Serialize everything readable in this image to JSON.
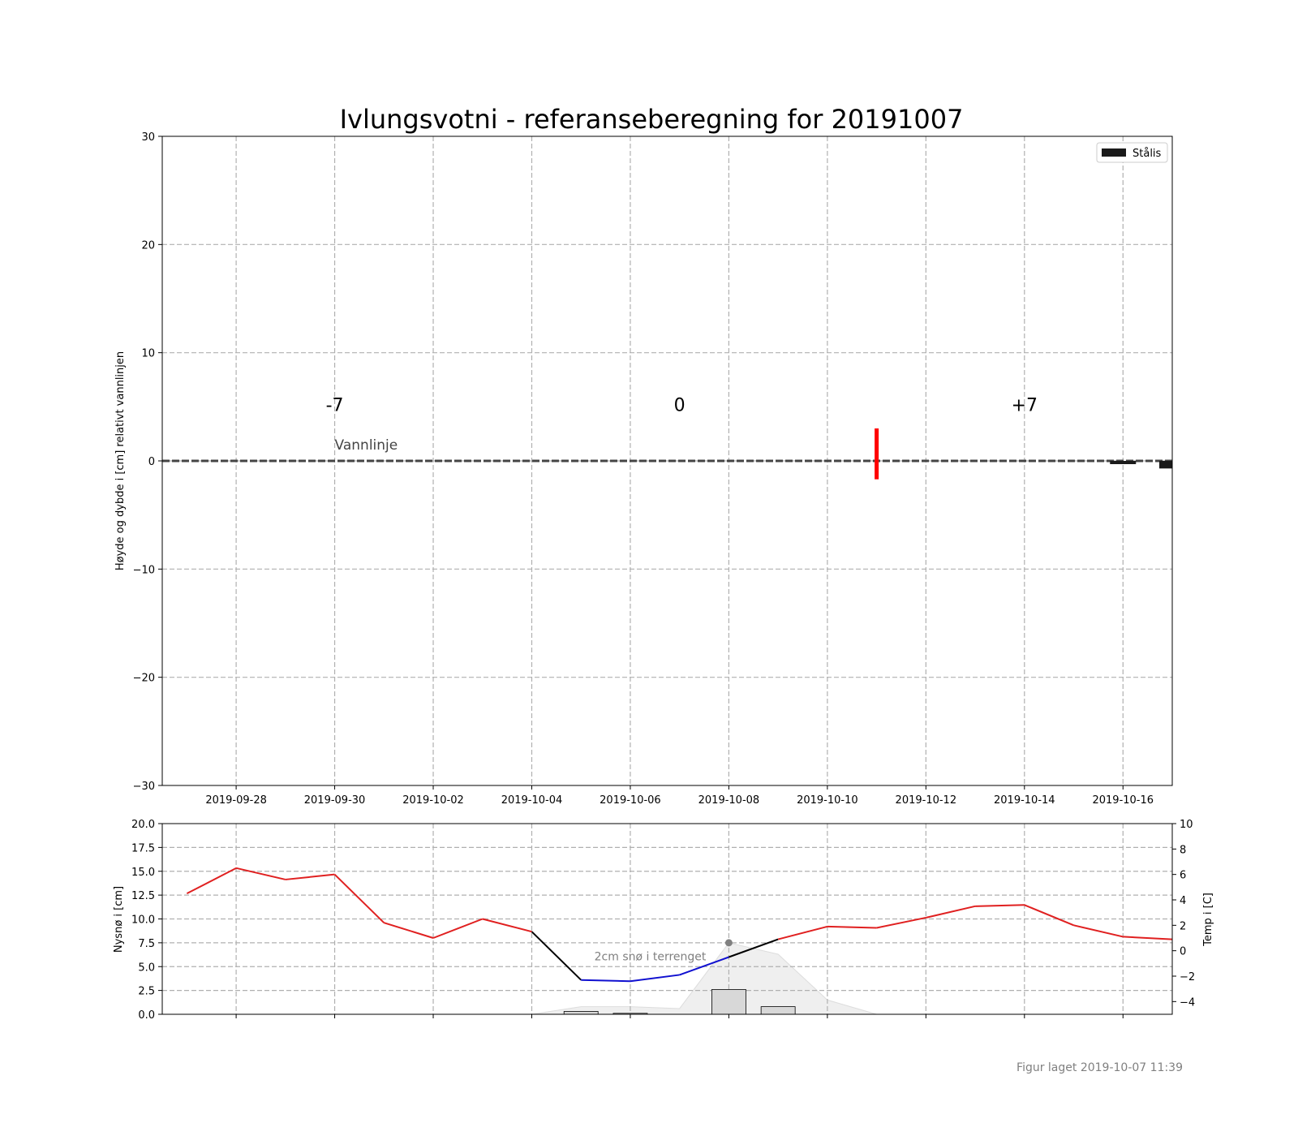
{
  "title": "Ivlungsvotni - referanseberegning for 20191007",
  "footer": "Figur laget 2019-10-07 11:39",
  "colors": {
    "temp_warm": "#e02020",
    "temp_cold": "#1010d0",
    "temp_transition": "#000000",
    "ice_marker": "#ff0000",
    "stalis": "#1a1a1a",
    "snow_bar": "#d8d8d8",
    "snow_terrain": "#efefef",
    "waterline": "#444444",
    "annotation_grey": "#808080"
  },
  "chart_data": [
    {
      "type": "bar",
      "name": "ice-profile",
      "ylabel": "Høyde og dybde i [cm] relativt vannlinjen",
      "ylim": [
        -30,
        30
      ],
      "xlim": [
        "2019-09-27",
        "2019-10-17"
      ],
      "x_tick_labels": [
        "2019-09-28",
        "2019-09-30",
        "2019-10-02",
        "2019-10-04",
        "2019-10-06",
        "2019-10-08",
        "2019-10-10",
        "2019-10-12",
        "2019-10-14",
        "2019-10-16"
      ],
      "y_ticks": [
        30,
        20,
        10,
        0,
        -10,
        -20,
        -30
      ],
      "y_tick_labels": [
        "30",
        "20",
        "10",
        "0",
        "−10",
        "−20",
        "−30"
      ],
      "grid": true,
      "waterline": {
        "y": 0,
        "label": "Vannlinje",
        "label_date": "2019-09-30"
      },
      "day_markers": [
        {
          "label": "-7",
          "date": "2019-09-30"
        },
        {
          "label": "0",
          "date": "2019-10-07"
        },
        {
          "label": "+7",
          "date": "2019-10-14"
        }
      ],
      "observation_marker": {
        "date": "2019-10-11",
        "y_top": 3,
        "y_bottom": -1.7
      },
      "legend": {
        "placement": "upper right",
        "entries": [
          "Stålis"
        ]
      },
      "series": [
        {
          "name": "Stålis",
          "bars": [
            {
              "date": "2019-10-16",
              "top": 0,
              "bottom": -0.3
            },
            {
              "date": "2019-10-17",
              "top": 0,
              "bottom": -0.7
            }
          ]
        }
      ]
    },
    {
      "type": "line",
      "name": "weather",
      "ylabel_left": "Nysnø i [cm]",
      "ylabel_right": "Temp i [C]",
      "ylim_left": [
        0,
        20
      ],
      "ylim_right": [
        -5,
        10
      ],
      "y_ticks_left": [
        0,
        2.5,
        5,
        7.5,
        10,
        12.5,
        15,
        17.5,
        20
      ],
      "y_tick_labels_left": [
        "0.0",
        "2.5",
        "5.0",
        "7.5",
        "10.0",
        "12.5",
        "15.0",
        "17.5",
        "20.0"
      ],
      "y_ticks_right": [
        -4,
        -2,
        0,
        2,
        4,
        6,
        8,
        10
      ],
      "y_tick_labels_right": [
        "−4",
        "−2",
        "0",
        "2",
        "4",
        "6",
        "8",
        "10"
      ],
      "grid": true,
      "annotation": {
        "text": "2cm snø i terrenget",
        "date": "2019-10-08",
        "value_cm": 7.5
      },
      "temperature": {
        "dates": [
          "2019-09-27",
          "2019-09-28",
          "2019-09-29",
          "2019-09-30",
          "2019-10-01",
          "2019-10-02",
          "2019-10-03",
          "2019-10-04",
          "2019-10-05",
          "2019-10-06",
          "2019-10-07",
          "2019-10-08",
          "2019-10-09",
          "2019-10-10",
          "2019-10-11",
          "2019-10-12",
          "2019-10-13",
          "2019-10-14",
          "2019-10-15",
          "2019-10-16",
          "2019-10-17"
        ],
        "values": [
          4.5,
          6.5,
          5.6,
          6.0,
          2.2,
          1.0,
          2.5,
          1.5,
          -2.3,
          -2.4,
          -1.9,
          -0.5,
          0.9,
          1.9,
          1.8,
          2.6,
          3.5,
          3.6,
          2.0,
          1.1,
          0.9
        ]
      },
      "new_snow_bars": [
        {
          "date": "2019-10-05",
          "value": 0.3
        },
        {
          "date": "2019-10-06",
          "value": 0.1
        },
        {
          "date": "2019-10-08",
          "value": 2.6
        },
        {
          "date": "2019-10-09",
          "value": 0.8
        }
      ],
      "terrain_snow": {
        "dates": [
          "2019-10-04",
          "2019-10-05",
          "2019-10-06",
          "2019-10-07",
          "2019-10-08",
          "2019-10-09",
          "2019-10-10",
          "2019-10-11",
          "2019-10-12"
        ],
        "values": [
          0,
          0.8,
          0.8,
          0.6,
          7.5,
          6.3,
          1.5,
          0,
          0
        ]
      }
    }
  ]
}
